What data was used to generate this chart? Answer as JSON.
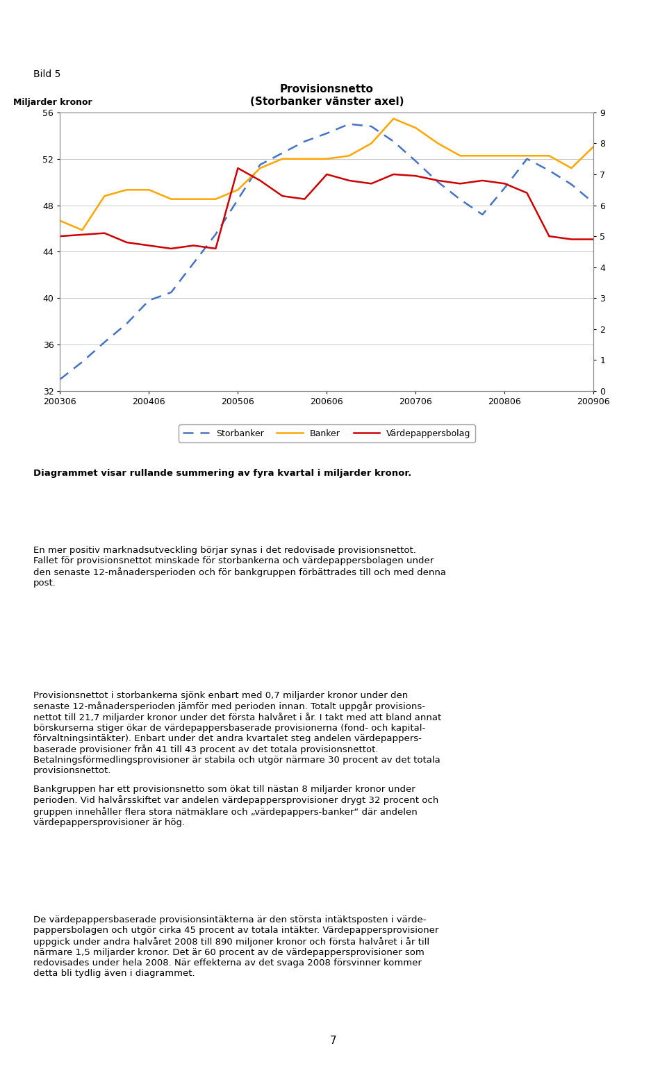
{
  "title": "Provisionsnetto",
  "subtitle": "(Storbanker vänster axel)",
  "ylabel_left": "Miljarder kronor",
  "x_labels": [
    "200306",
    "200406",
    "200506",
    "200606",
    "200706",
    "200806",
    "200906"
  ],
  "storbanker": {
    "label": "Storbanker",
    "color": "#4472C4",
    "x": [
      0,
      1,
      2,
      3,
      4,
      5,
      6,
      7,
      8,
      9,
      10,
      11,
      12,
      13,
      14,
      15,
      16,
      17,
      18,
      19,
      20,
      21,
      22,
      23,
      24
    ],
    "y": [
      33.0,
      34.5,
      36.2,
      37.8,
      39.8,
      40.5,
      43.0,
      45.5,
      48.5,
      51.5,
      52.5,
      53.5,
      54.2,
      55.0,
      54.8,
      53.5,
      51.8,
      50.0,
      48.5,
      47.2,
      49.5,
      52.0,
      51.0,
      49.8,
      48.2
    ]
  },
  "banker": {
    "label": "Banker",
    "color": "#FFA500",
    "x": [
      0,
      1,
      2,
      3,
      4,
      5,
      6,
      7,
      8,
      9,
      10,
      11,
      12,
      13,
      14,
      15,
      16,
      17,
      18,
      19,
      20,
      21,
      22,
      23,
      24
    ],
    "y": [
      5.5,
      5.2,
      6.3,
      6.5,
      6.5,
      6.2,
      6.2,
      6.2,
      6.5,
      7.2,
      7.5,
      7.5,
      7.5,
      7.6,
      8.0,
      8.8,
      8.5,
      8.0,
      7.6,
      7.6,
      7.6,
      7.6,
      7.6,
      7.2,
      7.9
    ]
  },
  "vardepappersbolag": {
    "label": "Värdepappersbolag",
    "color": "#CC0000",
    "x": [
      0,
      1,
      2,
      3,
      4,
      5,
      6,
      7,
      8,
      9,
      10,
      11,
      12,
      13,
      14,
      15,
      16,
      17,
      18,
      19,
      20,
      21,
      22,
      23,
      24
    ],
    "y": [
      5.0,
      5.05,
      5.1,
      4.8,
      4.7,
      4.6,
      4.7,
      4.6,
      7.2,
      6.8,
      6.3,
      6.2,
      7.0,
      6.8,
      6.7,
      7.0,
      6.95,
      6.8,
      6.7,
      6.8,
      6.7,
      6.4,
      5.0,
      4.9,
      4.9
    ]
  },
  "ylim_left": [
    32,
    56
  ],
  "ylim_right": [
    0,
    9
  ],
  "yticks_left": [
    32,
    36,
    40,
    44,
    48,
    52,
    56
  ],
  "yticks_right": [
    0,
    1,
    2,
    3,
    4,
    5,
    6,
    7,
    8,
    9
  ],
  "x_tick_positions": [
    0,
    4,
    8,
    12,
    16,
    20,
    24
  ],
  "n_points": 25,
  "text_blocks": [
    {
      "text": "Diagrammet visar rullande summering av fyra kvartal i miljarder kronor.",
      "bold": true,
      "fontsize": 9.5
    },
    {
      "text": "En mer positiv marknadsutveckling börjar synas i det redovisade provisionsnettot.\nFallet för provisionsnettot minskade för storbankerna och värdepappersbolagen under\nden senaste 12-månadersperioden och för bankgruppen förbättrades till och med denna\npost.",
      "bold": false,
      "fontsize": 9.5
    },
    {
      "text": "Provisionsnettot i storbankerna sjönk enbart med 0,7 miljarder kronor under den\nsenaste 12-månadersperioden jämför med perioden innan. Totalt uppgår provisions-\nnettot till 21,7 miljarder kronor under det första halvåret i år. I takt med att bland annat\nbörskurserna stiger ökar de värdepappersbaserade provisionerna (fond- och kapital-\nförvaltningsintäkter). Enbart under det andra kvartalet steg andelen värdepappers-\nbaserade provisioner från 41 till 43 procent av det totala provisionsnettot.\nBetalningsförmedlingsprovisioner är stabila och utgör närmare 30 procent av det totala\nprovisionsnettot.",
      "bold": false,
      "fontsize": 9.5
    },
    {
      "text": "Bankgruppen har ett provisionsnetto som ökat till nästan 8 miljarder kronor under\nperioden. Vid halvårsskiftet var andelen värdepappersprovisioner drygt 32 procent och\ngruppen innehåller flera stora nätmäklare och „värdepappers-banker“ där andelen\nvärdepappersprovisioner är hög.",
      "bold": false,
      "fontsize": 9.5
    },
    {
      "text": "De värdepappersbaserade provisionsintäkterna är den största intäktsposten i värde-\npappersbolagen och utgör cirka 45 procent av totala intäkter. Värdepappersprovisioner\nuppgick under andra halvåret 2008 till 890 miljoner kronor och första halvåret i år till\nnärmare 1,5 miljarder kronor. Det är 60 procent av de värdepappersprovisioner som\nredovisades under hela 2008. När effekterna av det svaga 2008 försvinner kommer\ndetta bli tydlig även i diagrammet.",
      "bold": false,
      "fontsize": 9.5
    }
  ],
  "page_number": "7",
  "bild_label": "Bild 5",
  "background_color": "#FFFFFF",
  "grid_color": "#C0C0C0",
  "spine_color": "#888888"
}
